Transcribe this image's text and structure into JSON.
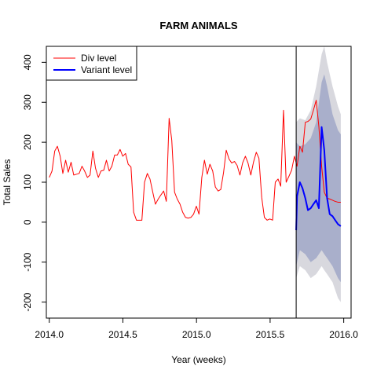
{
  "chart_data": {
    "type": "line",
    "title": "FARM ANIMALS",
    "xlabel": "Year (weeks)",
    "ylabel": "Total Sales",
    "xlim": [
      2013.98,
      2016.05
    ],
    "ylim": [
      -240,
      440
    ],
    "x_ticks": [
      2014.0,
      2014.5,
      2015.0,
      2015.5,
      2016.0
    ],
    "x_tick_labels": [
      "2014.0",
      "2014.5",
      "2015.0",
      "2015.5",
      "2016.0"
    ],
    "y_ticks": [
      -200,
      -100,
      0,
      100,
      200,
      300,
      400
    ],
    "y_tick_labels": [
      "-200",
      "-100",
      "0",
      "100",
      "200",
      "300",
      "400"
    ],
    "grid": false,
    "legend_position": "top-left",
    "forecast_start": 2015.677,
    "colors": {
      "div_level": "#ff0000",
      "variant_level": "#0000ff",
      "band_outer": "#d8d8de",
      "band_inner": "#a9afcb",
      "vline": "#000000"
    },
    "series": [
      {
        "name": "Div level",
        "x": [
          2014.0,
          2014.0185,
          2014.037,
          2014.055,
          2014.074,
          2014.092,
          2014.111,
          2014.129,
          2014.148,
          2014.166,
          2014.185,
          2014.203,
          2014.222,
          2014.24,
          2014.259,
          2014.277,
          2014.296,
          2014.314,
          2014.333,
          2014.351,
          2014.37,
          2014.388,
          2014.407,
          2014.425,
          2014.444,
          2014.462,
          2014.481,
          2014.499,
          2014.518,
          2014.536,
          2014.555,
          2014.573,
          2014.592,
          2014.61,
          2014.629,
          2014.647,
          2014.666,
          2014.684,
          2014.703,
          2014.721,
          2014.74,
          2014.758,
          2014.777,
          2014.795,
          2014.814,
          2014.832,
          2014.851,
          2014.869,
          2014.888,
          2014.906,
          2014.925,
          2014.943,
          2014.962,
          2014.98,
          2014.999,
          2015.017,
          2015.036,
          2015.054,
          2015.073,
          2015.091,
          2015.11,
          2015.128,
          2015.147,
          2015.165,
          2015.184,
          2015.202,
          2015.221,
          2015.239,
          2015.258,
          2015.276,
          2015.295,
          2015.313,
          2015.332,
          2015.35,
          2015.369,
          2015.387,
          2015.406,
          2015.424,
          2015.443,
          2015.461,
          2015.48,
          2015.498,
          2015.517,
          2015.535,
          2015.554,
          2015.572,
          2015.591,
          2015.609,
          2015.628,
          2015.646,
          2015.665,
          2015.683,
          2015.702,
          2015.72,
          2015.739,
          2015.757,
          2015.776,
          2015.794,
          2015.813,
          2015.831,
          2015.85,
          2015.868,
          2015.887,
          2015.905,
          2015.924,
          2015.942,
          2015.961,
          2015.98
        ],
        "values": [
          112,
          128,
          178,
          190,
          165,
          122,
          155,
          125,
          150,
          118,
          120,
          122,
          140,
          128,
          112,
          118,
          178,
          135,
          112,
          128,
          130,
          155,
          128,
          140,
          168,
          168,
          182,
          165,
          172,
          145,
          138,
          25,
          5,
          5,
          5,
          100,
          122,
          108,
          75,
          45,
          58,
          68,
          78,
          52,
          260,
          205,
          75,
          58,
          45,
          25,
          12,
          10,
          12,
          20,
          40,
          20,
          112,
          155,
          120,
          145,
          128,
          88,
          78,
          82,
          125,
          180,
          158,
          148,
          152,
          142,
          118,
          148,
          165,
          148,
          118,
          150,
          175,
          160,
          62,
          12,
          5,
          8,
          5,
          100,
          108,
          90,
          280,
          100,
          115,
          130,
          165,
          140,
          190,
          175,
          250,
          252,
          258,
          280,
          305,
          240,
          140,
          75,
          60,
          58,
          55,
          52,
          50,
          50
        ],
        "color": "#ff0000"
      },
      {
        "name": "Variant level",
        "x": [
          2015.677,
          2015.683,
          2015.702,
          2015.72,
          2015.739,
          2015.757,
          2015.776,
          2015.794,
          2015.813,
          2015.831,
          2015.85,
          2015.868,
          2015.887,
          2015.905,
          2015.924,
          2015.942,
          2015.961,
          2015.98
        ],
        "values": [
          -20,
          65,
          100,
          85,
          60,
          30,
          35,
          45,
          55,
          35,
          238,
          180,
          60,
          20,
          15,
          5,
          -5,
          -10
        ],
        "color": "#0000ff"
      }
    ],
    "bands": [
      {
        "x": [
          2015.677,
          2015.702,
          2015.739,
          2015.776,
          2015.813,
          2015.85,
          2015.868,
          2015.887,
          2015.924,
          2015.961,
          2015.98
        ],
        "upper_outer": [
          250,
          260,
          255,
          280,
          340,
          420,
          440,
          400,
          340,
          290,
          270
        ],
        "lower_outer": [
          -140,
          -110,
          -120,
          -140,
          -130,
          -110,
          -120,
          -130,
          -150,
          -190,
          -200
        ],
        "upper_inner": [
          200,
          190,
          195,
          210,
          250,
          350,
          370,
          340,
          270,
          230,
          220
        ],
        "lower_inner": [
          -110,
          -70,
          -80,
          -100,
          -90,
          -70,
          -80,
          -90,
          -110,
          -140,
          -150
        ]
      }
    ]
  }
}
